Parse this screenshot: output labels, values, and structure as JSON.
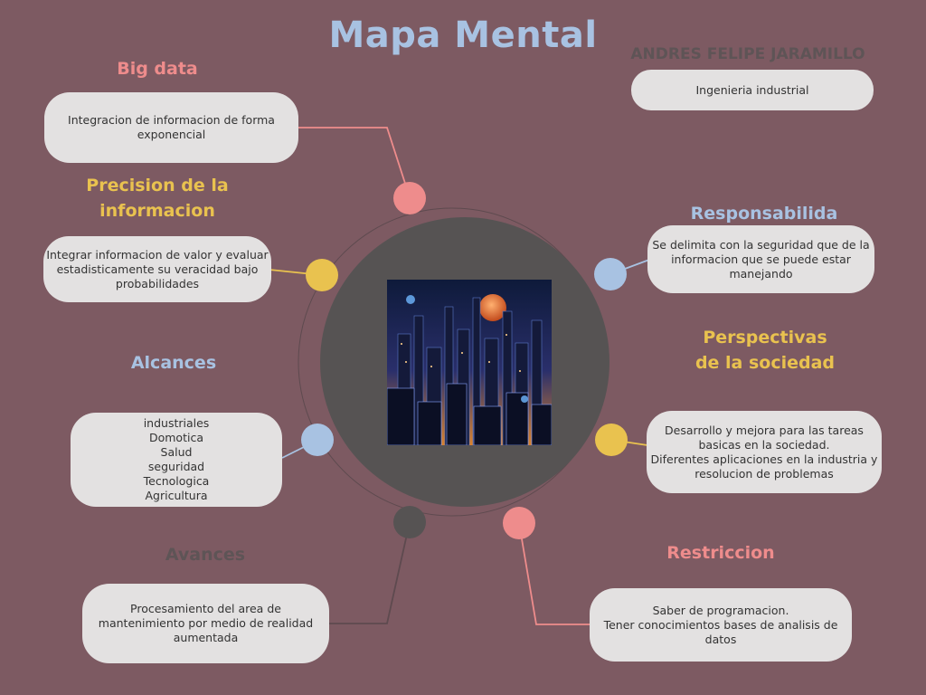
{
  "title": "Mapa Mental",
  "author": "ANDRES FELIPE JARAMILLO",
  "career": "Ingenieria industrial",
  "colors": {
    "background": "#7d5a62",
    "pink": "#ee8c8c",
    "yellow": "#e9c24f",
    "blue": "#a8c2e2",
    "grey": "#5e5456",
    "center_circle": "#565353",
    "box": "#e3e1e1"
  },
  "nodes": {
    "big_data": {
      "heading": "Big data",
      "text": "Integracion de informacion de forma exponencial"
    },
    "precision": {
      "heading": "Precision de la\ninformacion",
      "text": "Integrar informacion de valor y evaluar estadisticamente su veracidad bajo probabilidades"
    },
    "alcances": {
      "heading": "Alcances",
      "text": "industriales\nDomotica\nSalud\nseguridad\nTecnologica\nAgricultura"
    },
    "avances": {
      "heading": "Avances",
      "text": "Procesamiento del area de mantenimiento por medio de realidad aumentada"
    },
    "responsabilidad": {
      "heading": "Responsabilida\nd",
      "text": "Se delimita con la seguridad que de la informacion que se puede estar manejando"
    },
    "perspectivas": {
      "heading": "Perspectivas\nde la sociedad",
      "text": "Desarrollo y mejora para las tareas basicas en la sociedad.\nDiferentes aplicaciones en la industria  y resolucion de problemas"
    },
    "restriccion": {
      "heading": "Restriccion",
      "text": "Saber de programacion.\nTener conocimientos bases de analisis de datos"
    }
  }
}
